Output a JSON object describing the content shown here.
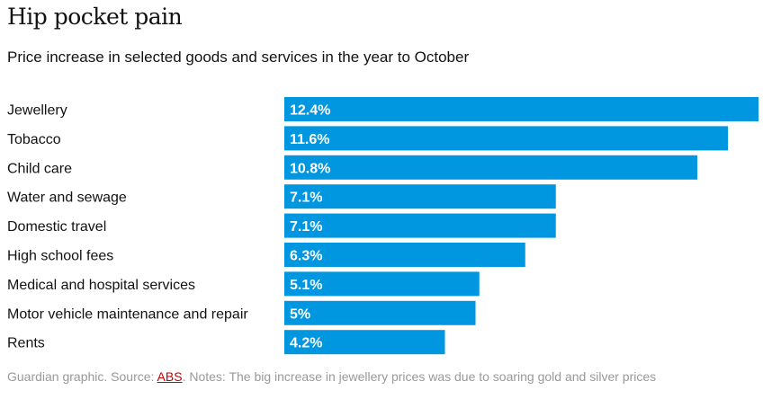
{
  "chart_data": {
    "type": "bar",
    "orientation": "horizontal",
    "title": "Hip pocket pain",
    "subtitle": "Price increase in selected goods and services in the year to October",
    "categories": [
      "Jewellery",
      "Tobacco",
      "Child care",
      "Water and sewage",
      "Domestic travel",
      "High school fees",
      "Medical and hospital services",
      "Motor vehicle maintenance and repair",
      "Rents"
    ],
    "values": [
      12.4,
      11.6,
      10.8,
      7.1,
      7.1,
      6.3,
      5.1,
      5,
      4.2
    ],
    "value_labels": [
      "12.4%",
      "11.6%",
      "10.8%",
      "7.1%",
      "7.1%",
      "6.3%",
      "5.1%",
      "5%",
      "4.2%"
    ],
    "xlim": [
      0,
      12.4
    ],
    "bar_color": "#0096e0",
    "label_color": "#ffffff"
  },
  "footer": {
    "prefix": "Guardian graphic. Source: ",
    "source_link": "ABS",
    "notes": ". Notes: The big increase in jewellery prices was due to soaring gold and silver prices"
  },
  "colors": {
    "text": "#121212",
    "footer_text": "#999999",
    "link": "#c70000"
  }
}
